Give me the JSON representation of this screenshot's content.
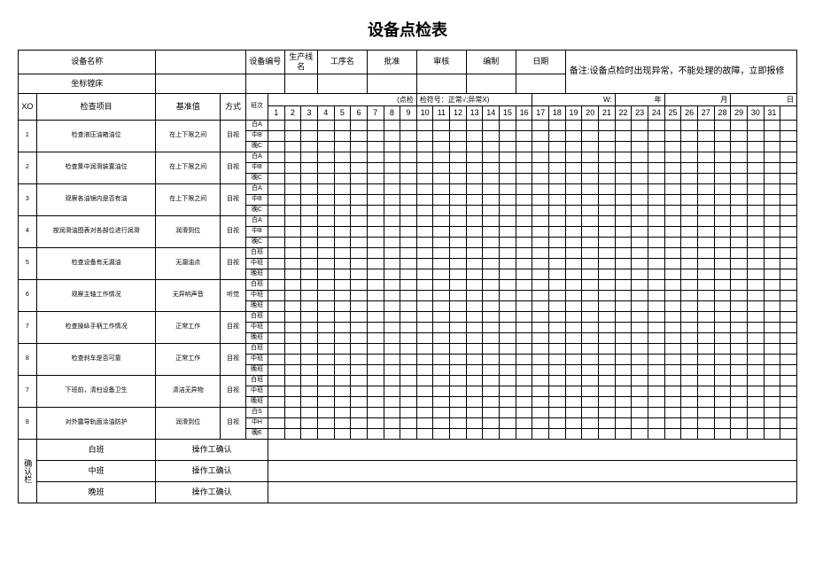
{
  "title": "设备点检表",
  "header": {
    "labels": {
      "device_name": "设备名称",
      "device_no": "设备编号",
      "line_name": "生产线名",
      "process_name": "工序名",
      "approve": "批准",
      "review": "审核",
      "compile": "编制",
      "date": "日期"
    },
    "device_name_value": "坐标镗床",
    "remark": "备注:设备点检时出现异常，不能处理的故障，立即报修"
  },
  "columns": {
    "no": "XO",
    "item": "检查项目",
    "std": "基准值",
    "method": "方式",
    "shift": "班次",
    "symbol_note": "检符号：正常√;异常X)",
    "point": "(点检",
    "w": "W:",
    "year": "年",
    "month": "月",
    "day_label": "日"
  },
  "days": [
    "1",
    "2",
    "3",
    "4",
    "5",
    "6",
    "7",
    "8",
    "9",
    "10",
    "11",
    "12",
    "13",
    "14",
    "15",
    "16",
    "17",
    "18",
    "19",
    "20",
    "21",
    "22",
    "23",
    "24",
    "25",
    "26",
    "27",
    "28",
    "29",
    "30",
    "31"
  ],
  "shifts": [
    "白A",
    "中B",
    "晚C"
  ],
  "shifts_alt": [
    "白班",
    "中班",
    "晚班"
  ],
  "shifts_s": [
    "白S",
    "中H",
    "晚E"
  ],
  "items": [
    {
      "no": "1",
      "name": "检查液压油箱油位",
      "std": "在上下限之间",
      "method": "目视"
    },
    {
      "no": "2",
      "name": "检查集中润滑装置油位",
      "std": "在上下限之间",
      "method": "目视"
    },
    {
      "no": "3",
      "name": "观察各油镜内是否有油",
      "std": "在上下限之间",
      "method": "目视"
    },
    {
      "no": "4",
      "name": "按润滑油图表对各部位进行润滑",
      "std": "润滑到位",
      "method": "目视"
    },
    {
      "no": "5",
      "name": "检查设备有无漏油",
      "std": "无漏油点",
      "method": "目视"
    },
    {
      "no": "6",
      "name": "观察主轴工作情况",
      "std": "无异响声音",
      "method": "听觉"
    },
    {
      "no": "7",
      "name": "检查操纵手柄工作情况",
      "std": "正常工作",
      "method": "目视"
    },
    {
      "no": "8",
      "name": "检查刹车是否可靠",
      "std": "正常工作",
      "method": "目视"
    },
    {
      "no": "7",
      "name": "下班前，清扫设备卫生",
      "std": "清洁无异物",
      "method": "目视"
    },
    {
      "no": "8",
      "name": "对外露导轨面涂油防护",
      "std": "润滑到位",
      "method": "目视"
    }
  ],
  "confirm": {
    "label": "确认栏",
    "rows": [
      {
        "shift": "白班",
        "op": "操作工确认"
      },
      {
        "shift": "中班",
        "op": "操作工确认"
      },
      {
        "shift": "晚班",
        "op": "操作工确认"
      }
    ]
  }
}
